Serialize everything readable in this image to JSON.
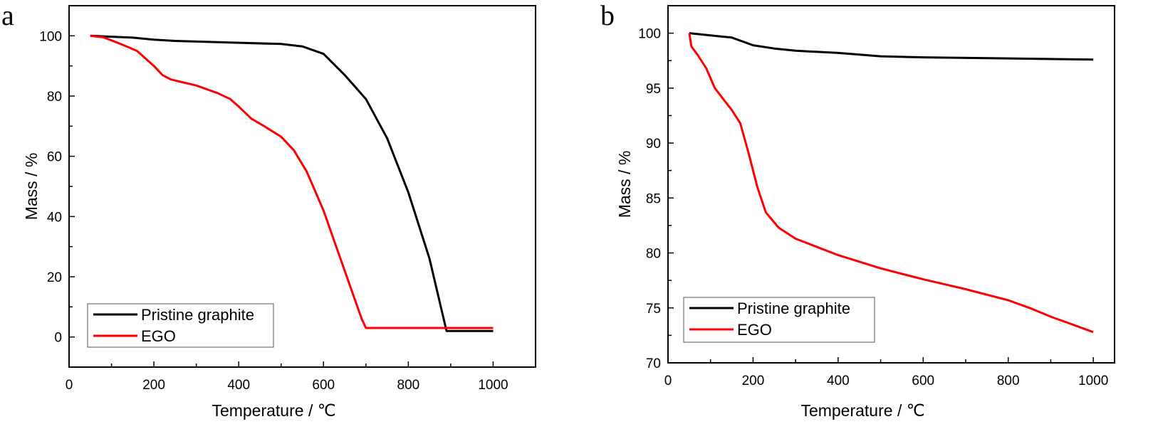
{
  "chart_data": [
    {
      "type": "line",
      "panel_label": "a",
      "xlabel": "Temperature / ℃",
      "ylabel": "Mass / %",
      "xlim": [
        0,
        1100
      ],
      "ylim": [
        -10,
        110
      ],
      "xticks": [
        0,
        200,
        400,
        600,
        800,
        1000
      ],
      "yticks": [
        0,
        20,
        40,
        60,
        80,
        100
      ],
      "grid": false,
      "legend_position": "bottom-left",
      "series": [
        {
          "name": "Pristine graphite",
          "color": "#000000",
          "x": [
            50,
            100,
            150,
            200,
            250,
            300,
            400,
            500,
            550,
            600,
            650,
            700,
            750,
            800,
            850,
            880,
            890,
            1000
          ],
          "y": [
            100,
            99.7,
            99.4,
            98.7,
            98.3,
            98.1,
            97.7,
            97.3,
            96.5,
            94,
            87,
            79,
            66,
            48,
            26,
            8,
            2,
            2
          ]
        },
        {
          "name": "EGO",
          "color": "#ff0000",
          "x": [
            50,
            80,
            100,
            130,
            160,
            180,
            200,
            220,
            240,
            300,
            350,
            380,
            400,
            430,
            460,
            500,
            530,
            560,
            600,
            630,
            660,
            690,
            700,
            800,
            1000
          ],
          "y": [
            100,
            99.5,
            98.5,
            96.8,
            95,
            92.5,
            90,
            87,
            85.5,
            83.5,
            81,
            79,
            76.5,
            72.5,
            70,
            66.5,
            62,
            55,
            42,
            30,
            18,
            6,
            3,
            3,
            3
          ]
        }
      ]
    },
    {
      "type": "line",
      "panel_label": "b",
      "xlabel": "Temperature / ℃",
      "ylabel": "Mass / %",
      "xlim": [
        0,
        1050
      ],
      "ylim": [
        70,
        102.5
      ],
      "xticks": [
        0,
        200,
        400,
        600,
        800,
        1000
      ],
      "yticks": [
        70,
        75,
        80,
        85,
        90,
        95,
        100
      ],
      "grid": false,
      "legend_position": "bottom-left",
      "series": [
        {
          "name": "Pristine graphite",
          "color": "#000000",
          "x": [
            50,
            100,
            150,
            200,
            250,
            300,
            400,
            500,
            600,
            800,
            1000
          ],
          "y": [
            100,
            99.8,
            99.6,
            98.9,
            98.6,
            98.4,
            98.2,
            97.9,
            97.8,
            97.7,
            97.6
          ]
        },
        {
          "name": "EGO",
          "color": "#ff0000",
          "x": [
            50,
            55,
            70,
            90,
            110,
            130,
            150,
            170,
            190,
            210,
            230,
            260,
            300,
            400,
            500,
            600,
            700,
            800,
            850,
            900,
            950,
            1000
          ],
          "y": [
            100,
            98.8,
            98,
            96.8,
            95,
            94,
            93,
            91.8,
            89,
            86,
            83.7,
            82.3,
            81.3,
            79.8,
            78.6,
            77.6,
            76.7,
            75.7,
            75,
            74.2,
            73.5,
            72.8
          ]
        }
      ]
    }
  ]
}
